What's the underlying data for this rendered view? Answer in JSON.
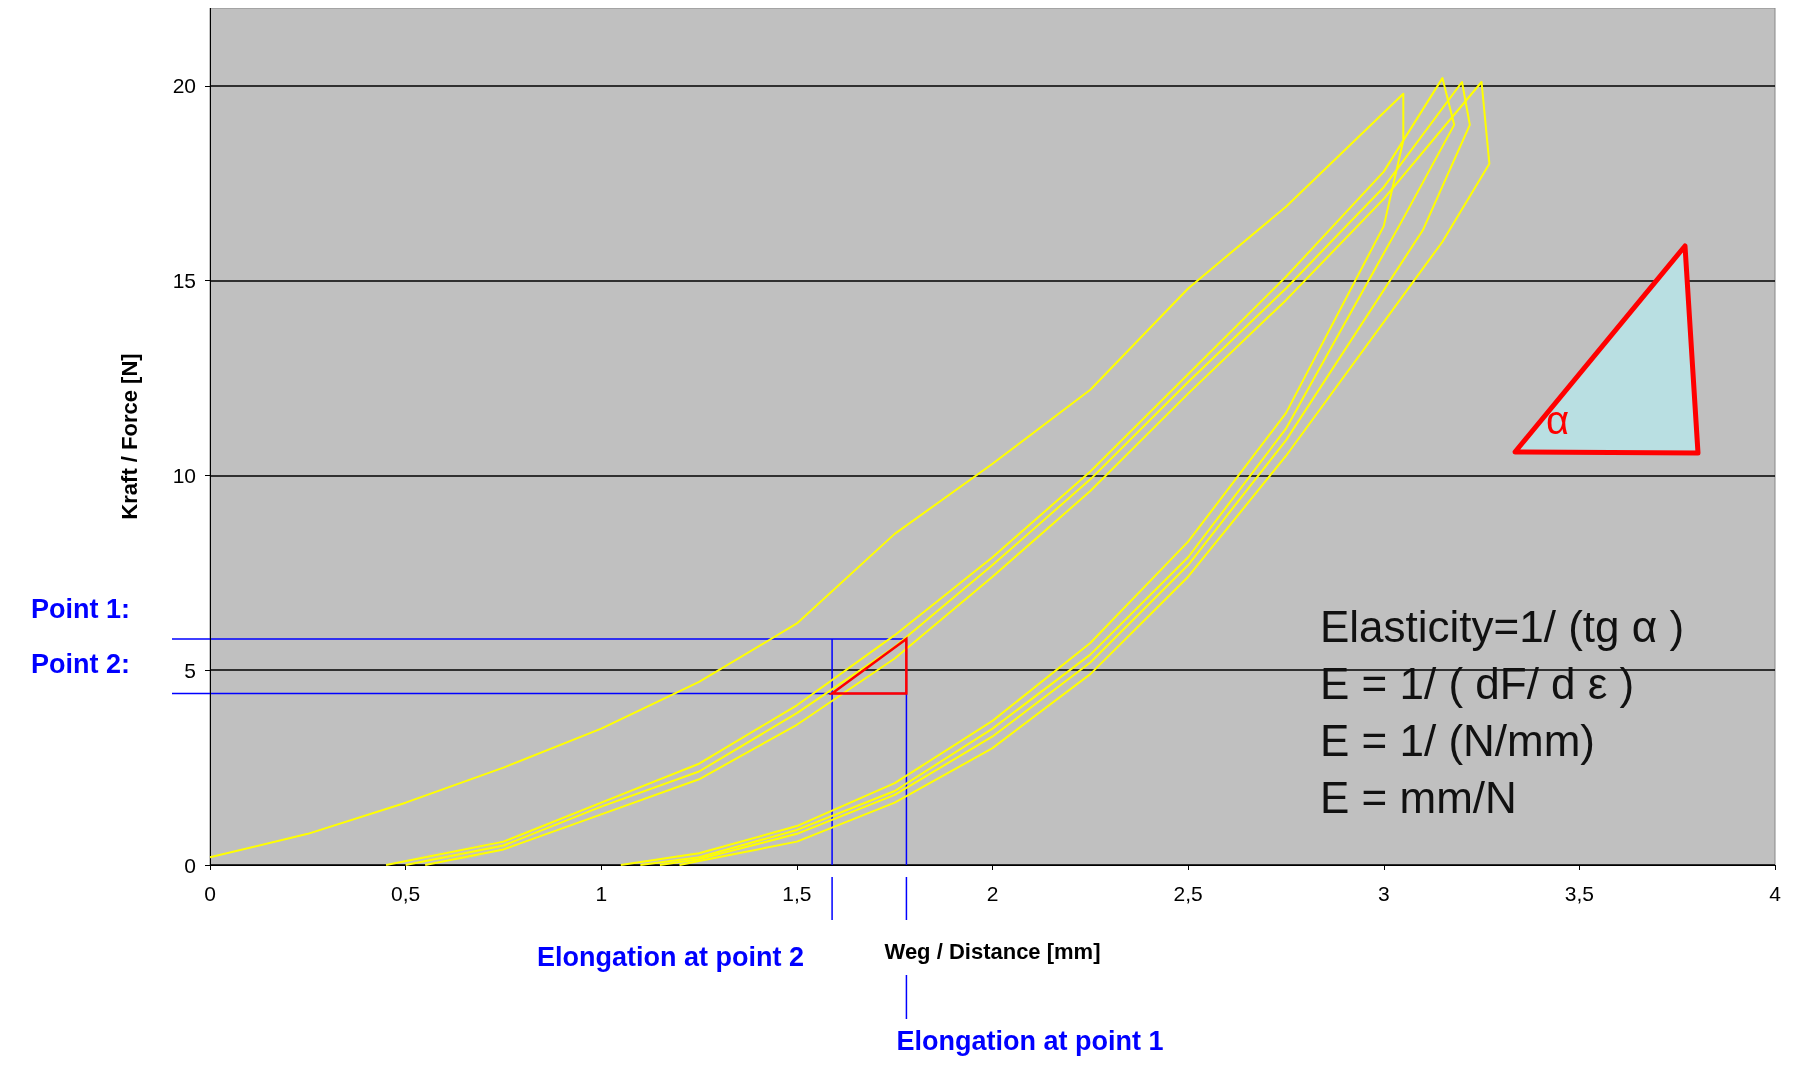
{
  "chart_data": {
    "type": "line",
    "xlabel": "Weg / Distance [mm]",
    "ylabel": "Kraft / Force [N]",
    "xlim": [
      0,
      4
    ],
    "xticks": [
      0,
      {
        "value": 0.5,
        "label": "0,5"
      },
      1,
      {
        "value": 1.5,
        "label": "1,5"
      },
      2,
      {
        "value": 2.5,
        "label": "2,5"
      },
      3,
      {
        "value": 3.5,
        "label": "3,5"
      },
      4
    ],
    "ylim": [
      0,
      22
    ],
    "yticks": [
      0,
      5,
      10,
      15,
      20
    ],
    "grid": "y",
    "marker": "none",
    "line_style": "solid",
    "series": [
      {
        "color": "#ffff00",
        "x": [
          0,
          0.25,
          0.5,
          0.75,
          1,
          1.25,
          1.5,
          1.75,
          2,
          2.25,
          2.5,
          2.75,
          3.05,
          3.05,
          3,
          2.75,
          2.5,
          2.25,
          2,
          1.75,
          1.5,
          1.25,
          1.05
        ],
        "values": [
          0.2,
          0.8,
          1.6,
          2.5,
          3.5,
          4.7,
          6.2,
          8.5,
          10.3,
          12.2,
          14.8,
          16.9,
          19.8,
          18.6,
          16.4,
          11.6,
          8.3,
          5.7,
          3.7,
          2.1,
          1,
          0.3,
          0
        ]
      },
      {
        "color": "#ffff00",
        "x": [
          0.45,
          0.75,
          1,
          1.25,
          1.5,
          1.75,
          2,
          2.25,
          2.5,
          2.75,
          3,
          3.15,
          3.18,
          3.05,
          2.75,
          2.5,
          2.25,
          2,
          1.75,
          1.5,
          1.25,
          1.1
        ],
        "values": [
          0,
          0.6,
          1.6,
          2.6,
          4.1,
          5.9,
          7.9,
          10.1,
          12.6,
          15.1,
          17.8,
          20.2,
          19,
          16.6,
          11.2,
          7.9,
          5.4,
          3.5,
          1.9,
          0.9,
          0.2,
          0
        ]
      },
      {
        "color": "#ffff00",
        "x": [
          0.5,
          0.75,
          1,
          1.25,
          1.5,
          1.75,
          2,
          2.25,
          2.5,
          2.75,
          3,
          3.2,
          3.22,
          3.1,
          2.75,
          2.5,
          2.25,
          2,
          1.75,
          1.5,
          1.25,
          1.15
        ],
        "values": [
          0,
          0.5,
          1.5,
          2.4,
          3.9,
          5.6,
          7.7,
          9.9,
          12.4,
          14.8,
          17.4,
          20.1,
          19,
          16.3,
          10.9,
          7.7,
          5.2,
          3.3,
          1.8,
          0.8,
          0.15,
          0
        ]
      },
      {
        "color": "#ffff00",
        "x": [
          0.55,
          0.75,
          1,
          1.25,
          1.5,
          1.75,
          2,
          2.25,
          2.5,
          2.75,
          3,
          3.25,
          3.27,
          3.15,
          2.75,
          2.5,
          2.25,
          2,
          1.75,
          1.5,
          1.25,
          1.2
        ],
        "values": [
          0,
          0.4,
          1.3,
          2.2,
          3.6,
          5.3,
          7.4,
          9.6,
          12.1,
          14.5,
          17.1,
          20.1,
          18,
          16,
          10.5,
          7.4,
          4.9,
          3,
          1.6,
          0.6,
          0.1,
          0
        ]
      }
    ],
    "ref_lines": [
      {
        "axis": "y",
        "value": 5.8,
        "label": "Point 1:",
        "color": "#0000ff"
      },
      {
        "axis": "y",
        "value": 4.4,
        "label": "Point 2:",
        "color": "#0000ff"
      },
      {
        "axis": "x",
        "value": 1.78,
        "label": "Elongation at point 1",
        "color": "#0000ff"
      },
      {
        "axis": "x",
        "value": 1.59,
        "label": "Elongation at point 2",
        "color": "#0000ff"
      }
    ],
    "annotations": [
      "α",
      "Elasticity=1/ (tg α )",
      "E = 1/ ( dF/ d ε )",
      "E = 1/ (N/mm)",
      "E = mm/N"
    ]
  }
}
